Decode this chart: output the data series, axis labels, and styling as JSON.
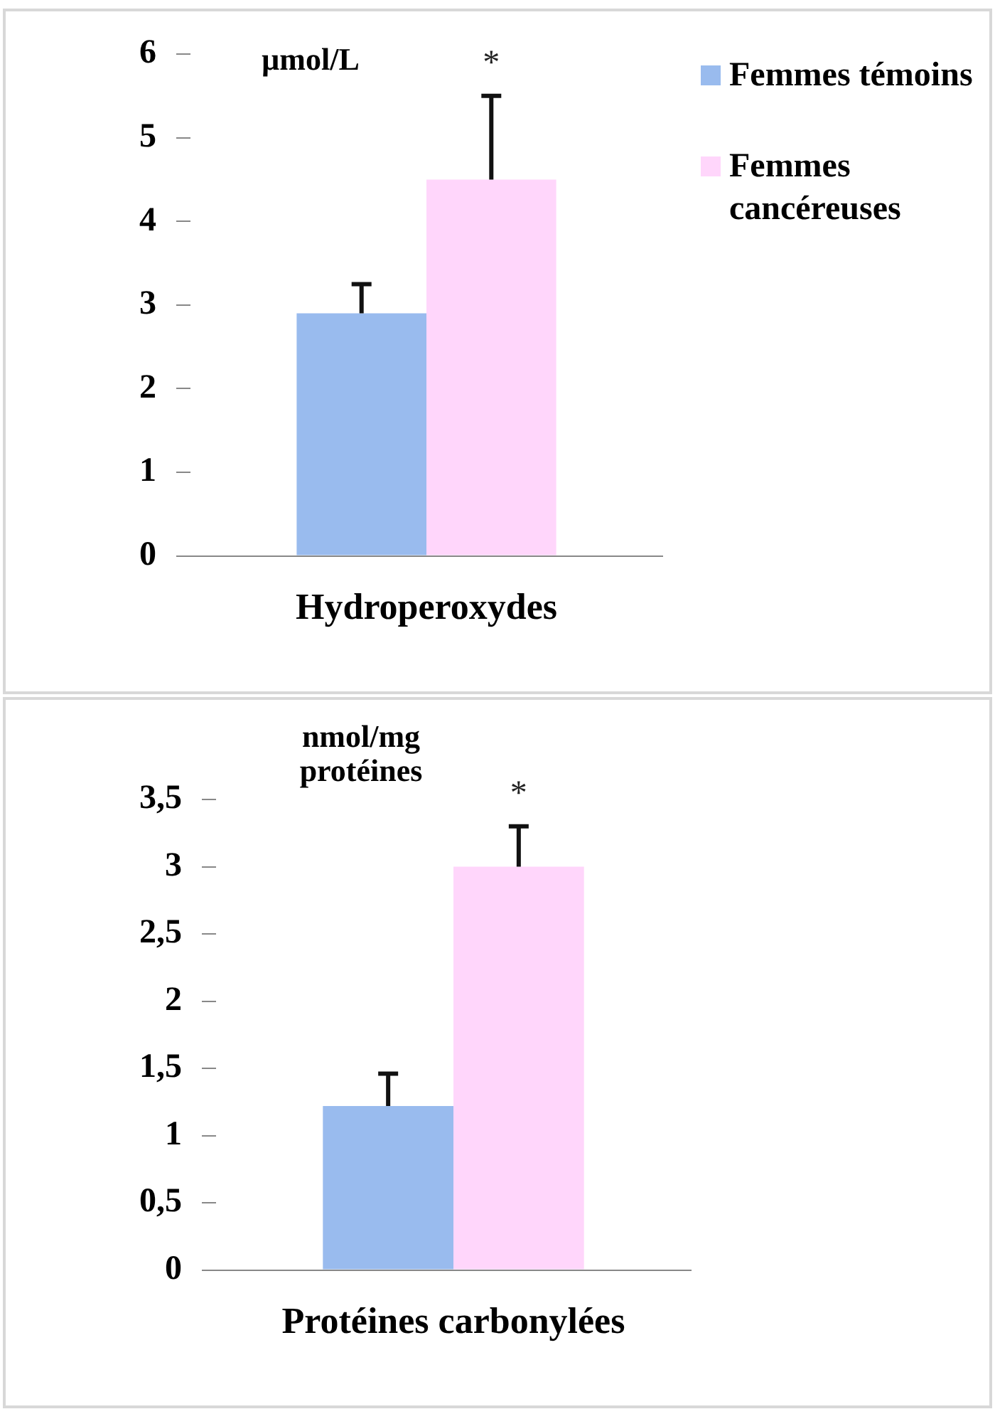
{
  "chart_data": [
    {
      "type": "bar",
      "ylabel": "µmol/L",
      "categories": [
        "Hydroperoxydes"
      ],
      "series": [
        {
          "name": "Femmes témoins",
          "color": "#99bbee",
          "values": [
            2.9
          ],
          "errors": [
            0.35
          ]
        },
        {
          "name": "Femmes cancéreuses",
          "color": "#ffd6fb",
          "values": [
            4.5
          ],
          "errors": [
            1.0
          ]
        }
      ],
      "annotations": [
        "*"
      ],
      "ylim": [
        0,
        6
      ],
      "yticks": [
        0,
        1,
        2,
        3,
        4,
        5,
        6
      ],
      "grid": false,
      "legend": "right"
    },
    {
      "type": "bar",
      "ylabel": "nmol/mg protéines",
      "categories": [
        "Protéines carbonylées"
      ],
      "series": [
        {
          "name": null,
          "color": "#99bbee",
          "values": [
            1.22
          ],
          "errors": [
            0.24
          ]
        },
        {
          "name": null,
          "color": "#ffd6fb",
          "values": [
            3.0
          ],
          "errors": [
            0.3
          ]
        }
      ],
      "annotations": [
        "*"
      ],
      "ylim": [
        0,
        3.5
      ],
      "yticks": [
        0,
        {
          "value": 0.5,
          "label": "0,5"
        },
        1,
        {
          "value": 1.5,
          "label": "1,5"
        },
        2,
        {
          "value": 2.5,
          "label": "2,5"
        },
        3,
        {
          "value": 3.5,
          "label": "3,5"
        }
      ],
      "grid": false,
      "legend": false
    }
  ]
}
